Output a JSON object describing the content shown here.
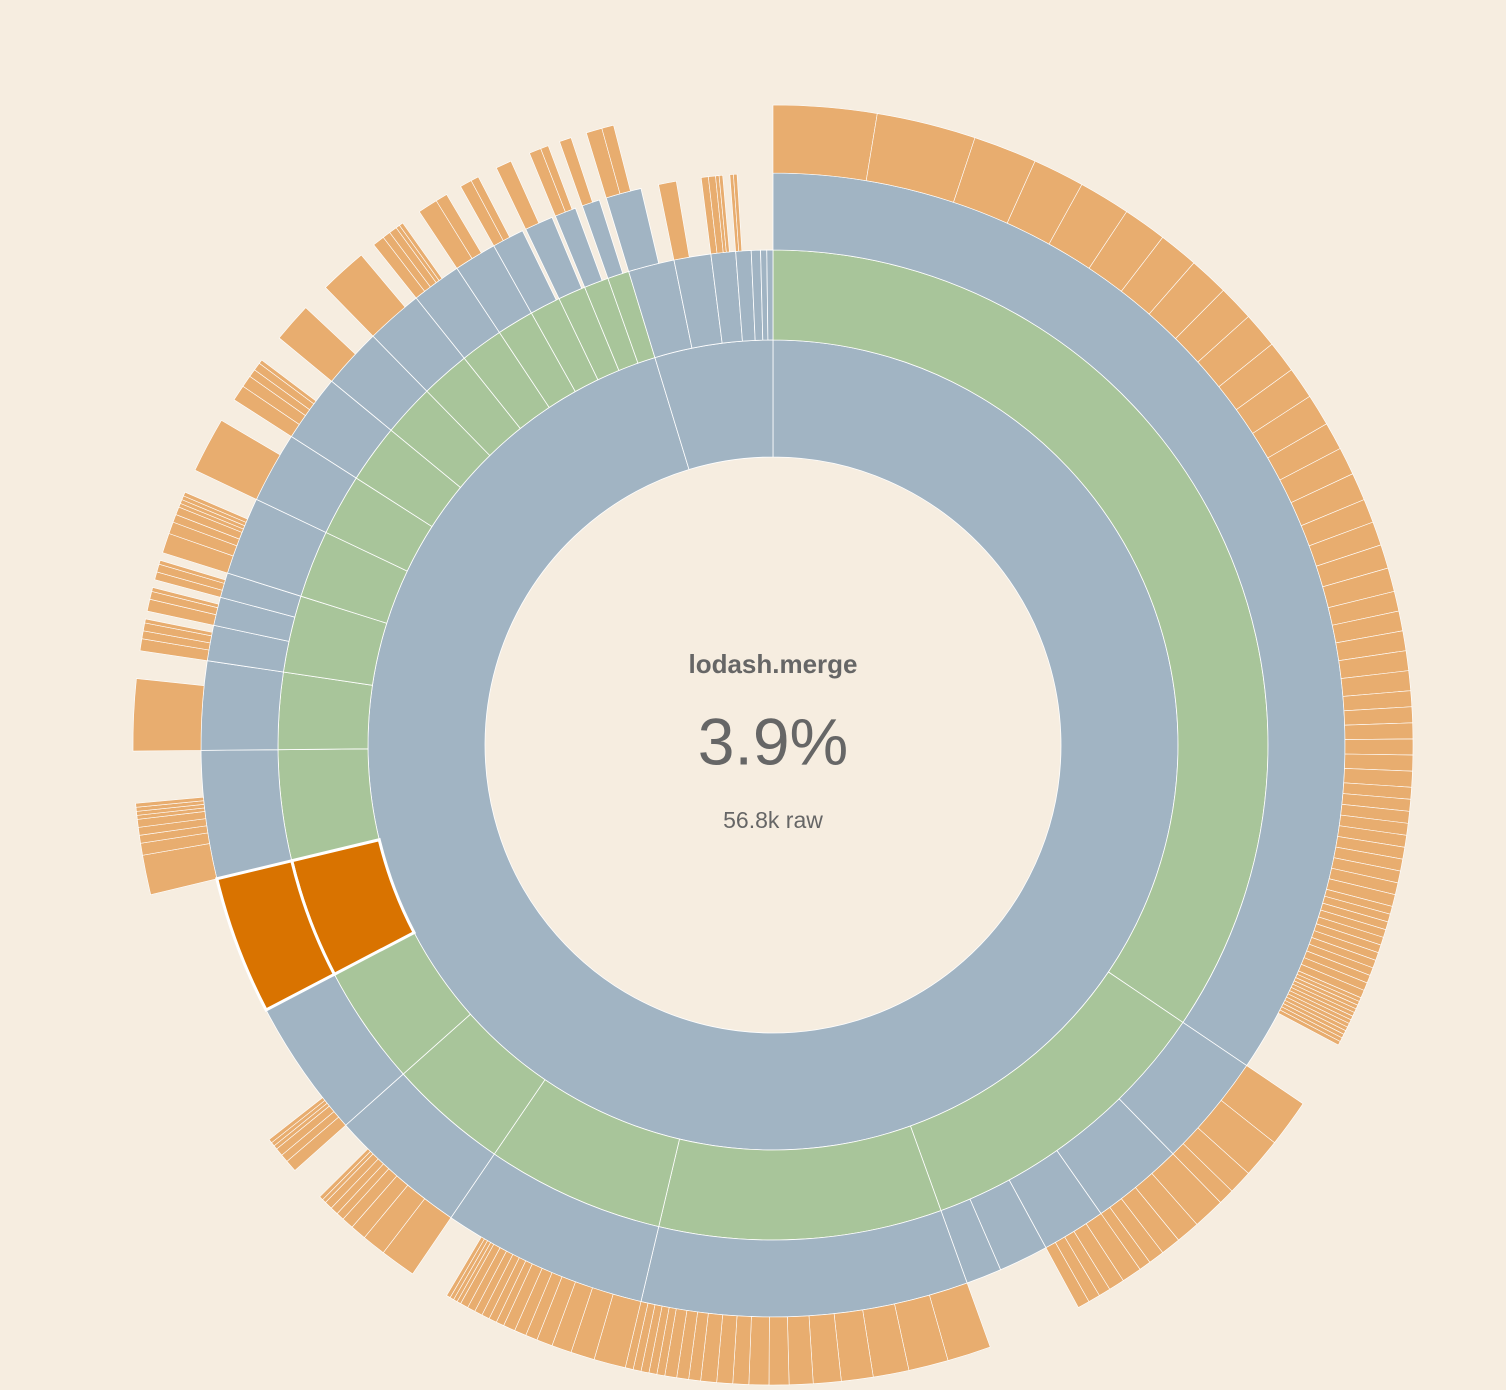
{
  "chart_data": {
    "type": "sunburst",
    "center": {
      "title": "lodash.merge",
      "percent": "3.9%",
      "size": "56.8k raw"
    },
    "palette": {
      "blue": "#a1b4c3",
      "green": "#a8c59a",
      "orange": "#e8ad6f",
      "highlight": "#d97300"
    },
    "leaf_color": "orange",
    "nodes": [
      {
        "value": 95.1,
        "color": "blue",
        "children": [
          {
            "value": 34.4,
            "color": "green",
            "children": [
              {
                "value": 34.4,
                "color": "blue",
                "leaves": [
                  2.6,
                  2.5,
                  1.6,
                  1.3,
                  1.3,
                  1.1,
                  1.0,
                  1.0,
                  0.9,
                  0.9,
                  0.8,
                  0.8,
                  0.8,
                  0.7,
                  0.7,
                  0.7,
                  0.6,
                  0.6,
                  0.6,
                  0.6,
                  0.5,
                  0.5,
                  0.5,
                  0.5,
                  0.5,
                  0.4,
                  0.4,
                  0.4,
                  0.4,
                  0.4,
                  0.4,
                  0.3,
                  0.3,
                  0.3,
                  0.3,
                  0.3,
                  0.3,
                  0.3,
                  0.3,
                  0.3,
                  0.3,
                  0.2,
                  0.2,
                  0.2,
                  0.2,
                  0.2,
                  0.2,
                  0.2,
                  0.2,
                  0.2,
                  0.2,
                  0.2,
                  0.2,
                  0.1,
                  0.1,
                  0.1,
                  0.1,
                  0.1,
                  0.1,
                  0.1,
                  0.1,
                  0.1,
                  0.1,
                  0.1,
                  0.1,
                  0.1
                ]
              }
            ]
          },
          {
            "value": 10,
            "color": "green",
            "children": [
              {
                "value": 3.2,
                "color": "blue",
                "leaves": [
                  1.2,
                  1.0,
                  0.6,
                  0.4
                ]
              },
              {
                "value": 2.6,
                "color": "blue",
                "leaves": [
                  0.8,
                  0.6,
                  0.5,
                  0.4,
                  0.3
                ]
              },
              {
                "value": 1.8,
                "color": "blue",
                "leaves": [
                  0.5,
                  0.4,
                  0.3,
                  0.3,
                  0.3
                ]
              },
              {
                "value": 1.4,
                "color": "blue"
              },
              {
                "value": 1.0,
                "color": "blue"
              }
            ]
          },
          {
            "value": 9.2,
            "color": "green",
            "children": [
              {
                "value": 9.2,
                "color": "blue",
                "leaves": [
                  1.1,
                  1.0,
                  0.9,
                  0.8,
                  0.7,
                  0.6,
                  0.5,
                  0.5,
                  0.4,
                  0.4,
                  0.4,
                  0.3,
                  0.3,
                  0.3,
                  0.2,
                  0.2,
                  0.2,
                  0.2,
                  0.2
                ]
              }
            ]
          },
          {
            "value": 5.8,
            "color": "green",
            "children": [
              {
                "value": 5.8,
                "color": "blue",
                "leaves": [
                  0.8,
                  0.6,
                  0.5,
                  0.4,
                  0.3,
                  0.3,
                  0.3,
                  0.2,
                  0.2,
                  0.2,
                  0.2,
                  0.2,
                  0.2,
                  0.1,
                  0.1,
                  0.1,
                  0.1
                ]
              }
            ]
          },
          {
            "value": 3.9,
            "color": "green",
            "children": [
              {
                "value": 3.9,
                "color": "blue",
                "leaves": [
                  0.9,
                  0.6,
                  0.4,
                  0.3,
                  0.2,
                  0.2,
                  0.2,
                  0.1,
                  0.1
                ]
              }
            ]
          },
          {
            "value": 3.9,
            "color": "green",
            "children": [
              {
                "value": 3.9,
                "color": "blue",
                "leaves": [
                  0.3,
                  0.2,
                  0.2,
                  0.1,
                  0.1,
                  0.1
                ]
              }
            ]
          },
          {
            "value": 3.9,
            "color": "highlight",
            "highlight": true,
            "children": [
              {
                "value": 3.9,
                "color": "highlight",
                "highlight": true
              }
            ]
          },
          {
            "value": 3.6,
            "color": "green",
            "children": [
              {
                "value": 3.6,
                "color": "blue",
                "leaves": [
                  1.0,
                  0.3,
                  0.2,
                  0.2,
                  0.2,
                  0.1,
                  0.1,
                  0.1,
                  0.1
                ]
              }
            ]
          },
          {
            "value": 2.5,
            "color": "green",
            "children": [
              {
                "value": 2.5,
                "color": "blue",
                "leaves": [
                  1.8
                ]
              }
            ]
          },
          {
            "value": 2.5,
            "color": "green",
            "children": [
              {
                "value": 1.0,
                "color": "blue",
                "leaves": [
                  0.3,
                  0.2,
                  0.2,
                  0.1
                ]
              },
              {
                "value": 0.8,
                "color": "blue",
                "leaves": [
                  0.3,
                  0.2,
                  0.1
                ]
              },
              {
                "value": 0.7,
                "color": "blue",
                "leaves": [
                  0.2,
                  0.2,
                  0.1
                ]
              }
            ]
          },
          {
            "value": 2.2,
            "color": "green",
            "children": [
              {
                "value": 2.2,
                "color": "blue",
                "leaves": [
                  0.5,
                  0.3,
                  0.2,
                  0.2,
                  0.1,
                  0.1,
                  0.1,
                  0.1
                ]
              }
            ]
          },
          {
            "value": 2.0,
            "color": "green",
            "children": [
              {
                "value": 2.0,
                "color": "blue",
                "leaves": [
                  1.4
                ]
              }
            ]
          },
          {
            "value": 1.9,
            "color": "green",
            "children": [
              {
                "value": 1.9,
                "color": "blue",
                "leaves": [
                  0.4,
                  0.3,
                  0.2,
                  0.2,
                  0.1
                ]
              }
            ]
          },
          {
            "value": 1.7,
            "color": "green",
            "children": [
              {
                "value": 1.7,
                "color": "blue",
                "leaves": [
                  1.0
                ]
              }
            ]
          },
          {
            "value": 1.6,
            "color": "green",
            "children": [
              {
                "value": 1.6,
                "color": "blue",
                "leaves": [
                  1.2
                ]
              }
            ]
          },
          {
            "value": 1.4,
            "color": "green",
            "children": [
              {
                "value": 1.4,
                "color": "blue",
                "leaves": [
                  0.3,
                  0.2,
                  0.2,
                  0.1,
                  0.1
                ]
              }
            ]
          },
          {
            "value": 1.2,
            "color": "green",
            "children": [
              {
                "value": 1.2,
                "color": "blue",
                "leaves": [
                  0.5,
                  0.3
                ]
              }
            ]
          },
          {
            "value": 1.0,
            "color": "green",
            "children": [
              {
                "value": 0.9,
                "color": "blue",
                "leaves": [
                  0.3,
                  0.2
                ]
              }
            ]
          },
          {
            "value": 0.9,
            "color": "green",
            "children": [
              {
                "value": 0.8,
                "color": "blue",
                "leaves": [
                  0.4
                ]
              }
            ]
          },
          {
            "value": 0.8,
            "color": "green",
            "children": [
              {
                "value": 0.6,
                "color": "blue",
                "leaves": [
                  0.3,
                  0.2
                ]
              }
            ]
          },
          {
            "value": 0.7,
            "color": "green",
            "children": [
              {
                "value": 0.5,
                "color": "blue",
                "leaves": [
                  0.3
                ]
              }
            ]
          }
        ]
      },
      {
        "value": 4.7,
        "color": "blue",
        "children": [
          {
            "value": 1.5,
            "color": "blue",
            "children": [
              {
                "value": 1.0,
                "color": "blue",
                "leaves": [
                  0.4,
                  0.3
                ]
              }
            ]
          },
          {
            "value": 1.2,
            "color": "blue",
            "leaves": [
              0.5
            ]
          },
          {
            "value": 0.8,
            "color": "blue",
            "leaves": [
              0.2,
              0.2,
              0.1,
              0.1
            ]
          },
          {
            "value": 0.5,
            "color": "blue",
            "leaves": [
              0.1,
              0.1
            ]
          },
          {
            "value": 0.3,
            "color": "blue"
          },
          {
            "value": 0.2,
            "color": "blue"
          },
          {
            "value": 0.2,
            "color": "blue"
          }
        ]
      }
    ]
  }
}
